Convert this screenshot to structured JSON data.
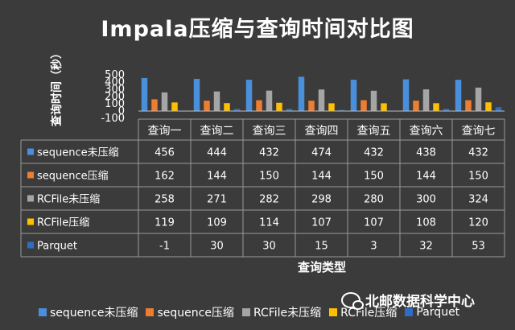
{
  "chart_data": {
    "type": "bar",
    "title": "Impala压缩与查询时间对比图",
    "ylabel": "查询时间（秒）",
    "xlabel": "查询类型",
    "categories": [
      "查询一",
      "查询二",
      "查询三",
      "查询四",
      "查询五",
      "查询六",
      "查询七"
    ],
    "yticks": [
      "500",
      "400",
      "300",
      "200",
      "100",
      "0",
      "-100"
    ],
    "ylim": [
      -100,
      500
    ],
    "grid": false,
    "legend_position": "bottom",
    "data_table": true,
    "series": [
      {
        "name": "sequence未压缩",
        "color": "#4a8fdb",
        "values": [
          456,
          444,
          432,
          474,
          432,
          438,
          432
        ]
      },
      {
        "name": "sequence压缩",
        "color": "#ed7d31",
        "values": [
          162,
          144,
          150,
          144,
          150,
          144,
          150
        ]
      },
      {
        "name": "RCFile未压缩",
        "color": "#a5a5a5",
        "values": [
          258,
          271,
          282,
          298,
          280,
          300,
          324
        ]
      },
      {
        "name": "RCFile压缩",
        "color": "#ffc000",
        "values": [
          119,
          109,
          114,
          107,
          107,
          108,
          120
        ]
      },
      {
        "name": "Parquet",
        "color": "#2e6dc4",
        "values": [
          -1,
          30,
          30,
          15,
          3,
          32,
          53
        ]
      }
    ]
  },
  "watermark": {
    "text": "北邮数据科学中心",
    "icon": "wechat-icon"
  }
}
